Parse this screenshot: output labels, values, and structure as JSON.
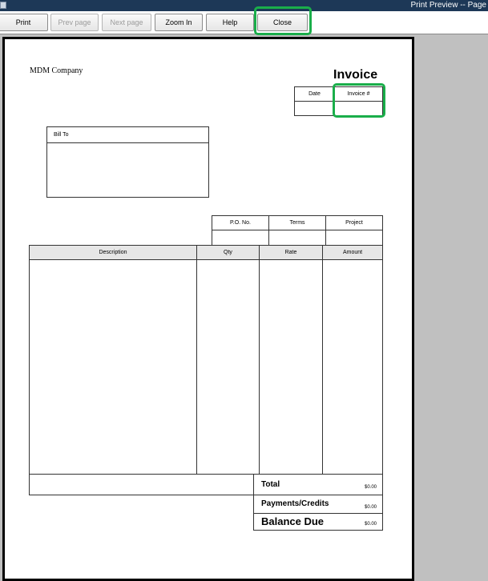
{
  "window": {
    "title": "Print Preview -- Page"
  },
  "toolbar": {
    "print": "Print",
    "prev_page": "Prev page",
    "next_page": "Next page",
    "zoom_in": "Zoom In",
    "help": "Help",
    "close": "Close"
  },
  "invoice": {
    "company": "MDM Company",
    "title": "Invoice",
    "date_label": "Date",
    "invoice_no_label": "Invoice #",
    "bill_to_label": "Bill To",
    "po_label": "P.O. No.",
    "terms_label": "Terms",
    "project_label": "Project",
    "columns": [
      "Description",
      "Qty",
      "Rate",
      "Amount"
    ],
    "total_label": "Total",
    "total": "$0.00",
    "payments_label": "Payments/Credits",
    "payments": "$0.00",
    "balance_label": "Balance Due",
    "balance": "$0.00"
  },
  "colors": {
    "highlight": "#1aae4a",
    "titlebar": "#1d3857"
  }
}
